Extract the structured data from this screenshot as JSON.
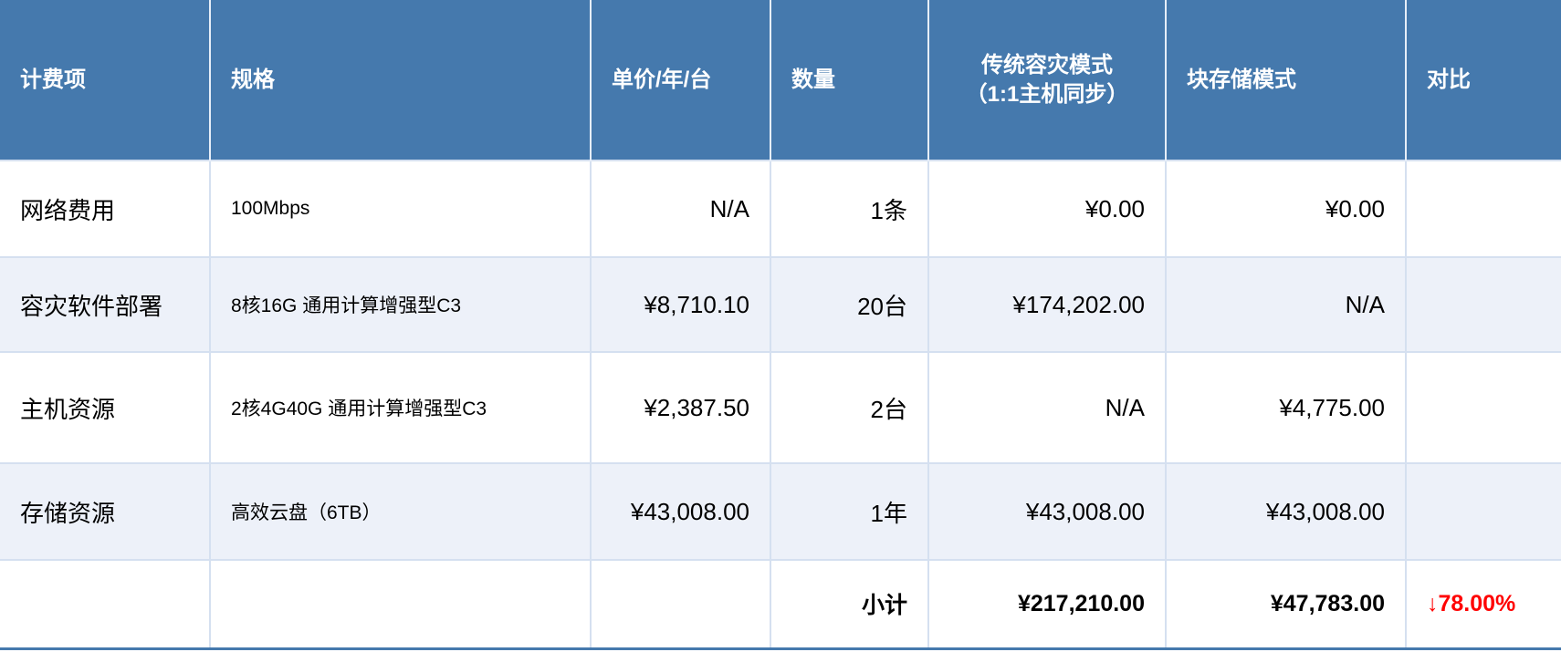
{
  "headers": [
    "计费项",
    "规格",
    "单价/年/台",
    "数量",
    "传统容灾模式",
    "（1:1主机同步）",
    "块存储模式",
    "对比"
  ],
  "rows": [
    {
      "item": "网络费用",
      "spec": "100Mbps",
      "price": "N/A",
      "qty": "1条",
      "traditional": "¥0.00",
      "block": "¥0.00",
      "compare": ""
    },
    {
      "item": "容灾软件部署",
      "spec": "8核16G 通用计算增强型C3",
      "price": "¥8,710.10",
      "qty": "20台",
      "traditional": "¥174,202.00",
      "block": "N/A",
      "compare": ""
    },
    {
      "item": "主机资源",
      "spec": "2核4G40G 通用计算增强型C3",
      "price": "¥2,387.50",
      "qty": "2台",
      "traditional": "N/A",
      "block": "¥4,775.00",
      "compare": ""
    },
    {
      "item": "存储资源",
      "spec": "高效云盘（6TB）",
      "price": "¥43,008.00",
      "qty": "1年",
      "traditional": "¥43,008.00",
      "block": "¥43,008.00",
      "compare": ""
    }
  ],
  "subtotal": {
    "label": "小计",
    "traditional": "¥217,210.00",
    "block": "¥47,783.00",
    "compare": "↓78.00%",
    "compare_color": "#ff0000"
  },
  "colors": {
    "header_bg": "#4579ad",
    "alt_row_bg": "#edf1f9"
  }
}
